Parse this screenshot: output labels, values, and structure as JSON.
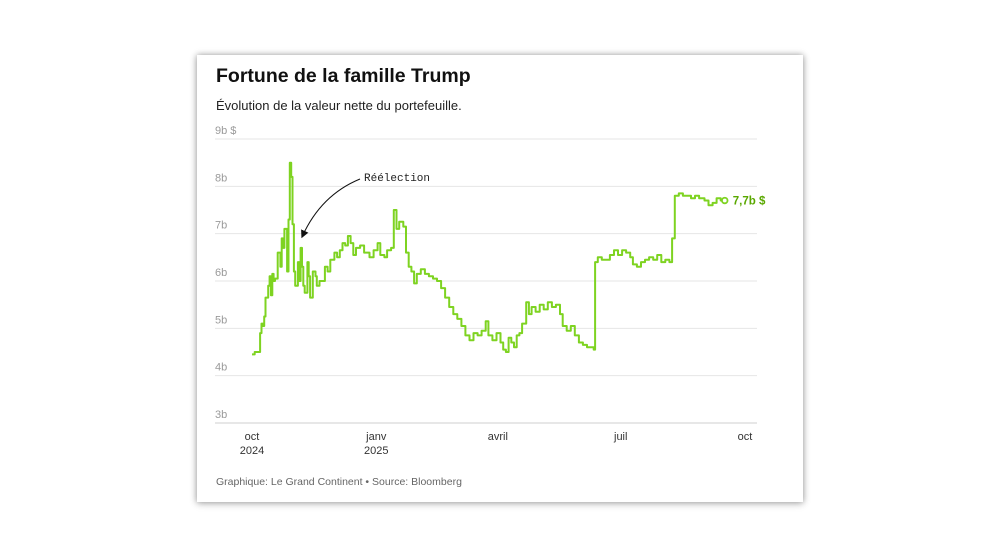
{
  "card": {
    "title": "Fortune de la famille Trump",
    "subtitle": "Évolution de la valeur nette du portefeuille.",
    "credit": "Graphique: Le Grand Continent • Source: Bloomberg"
  },
  "chart_data": {
    "type": "line",
    "title": "Fortune de la famille Trump",
    "subtitle": "Évolution de la valeur nette du portefeuille.",
    "xlabel": "",
    "ylabel": "",
    "ylim": [
      3,
      9
    ],
    "grid": true,
    "y_ticks": [
      "3b",
      "4b",
      "5b",
      "6b",
      "7b",
      "8b",
      "9b $"
    ],
    "x_ticks": [
      {
        "line1": "oct",
        "line2": "2024",
        "date": "2024-10-01"
      },
      {
        "line1": "janv",
        "line2": "2025",
        "date": "2025-01-01"
      },
      {
        "line1": "avril",
        "line2": "",
        "date": "2025-04-01"
      },
      {
        "line1": "juil",
        "line2": "",
        "date": "2025-07-01"
      },
      {
        "line1": "oct",
        "line2": "",
        "date": "2025-10-01"
      }
    ],
    "line_color": "#7ed321",
    "end_label": "7,7b $",
    "annotation": {
      "text": "Réélection",
      "date": "2024-11-05",
      "value": 6.9
    },
    "series": [
      {
        "points": [
          [
            "2024-10-01",
            4.45
          ],
          [
            "2024-10-03",
            4.5
          ],
          [
            "2024-10-05",
            4.5
          ],
          [
            "2024-10-07",
            4.9
          ],
          [
            "2024-10-08",
            5.1
          ],
          [
            "2024-10-09",
            5.05
          ],
          [
            "2024-10-10",
            5.25
          ],
          [
            "2024-10-11",
            5.65
          ],
          [
            "2024-10-13",
            5.9
          ],
          [
            "2024-10-14",
            6.1
          ],
          [
            "2024-10-15",
            5.7
          ],
          [
            "2024-10-16",
            6.15
          ],
          [
            "2024-10-17",
            6.0
          ],
          [
            "2024-10-18",
            6.05
          ],
          [
            "2024-10-20",
            6.6
          ],
          [
            "2024-10-22",
            6.3
          ],
          [
            "2024-10-23",
            6.9
          ],
          [
            "2024-10-24",
            6.7
          ],
          [
            "2024-10-25",
            7.1
          ],
          [
            "2024-10-27",
            6.2
          ],
          [
            "2024-10-28",
            7.3
          ],
          [
            "2024-10-29",
            8.5
          ],
          [
            "2024-10-30",
            8.2
          ],
          [
            "2024-10-31",
            7.2
          ],
          [
            "2024-11-01",
            6.2
          ],
          [
            "2024-11-02",
            5.9
          ],
          [
            "2024-11-04",
            6.4
          ],
          [
            "2024-11-05",
            6.0
          ],
          [
            "2024-11-06",
            6.7
          ],
          [
            "2024-11-07",
            6.3
          ],
          [
            "2024-11-08",
            5.9
          ],
          [
            "2024-11-09",
            5.75
          ],
          [
            "2024-11-11",
            6.4
          ],
          [
            "2024-11-12",
            6.1
          ],
          [
            "2024-11-13",
            5.65
          ],
          [
            "2024-11-15",
            6.2
          ],
          [
            "2024-11-17",
            6.1
          ],
          [
            "2024-11-18",
            5.9
          ],
          [
            "2024-11-20",
            6.0
          ],
          [
            "2024-11-22",
            6.0
          ],
          [
            "2024-11-24",
            6.3
          ],
          [
            "2024-11-26",
            6.2
          ],
          [
            "2024-11-28",
            6.45
          ],
          [
            "2024-12-01",
            6.6
          ],
          [
            "2024-12-03",
            6.5
          ],
          [
            "2024-12-05",
            6.65
          ],
          [
            "2024-12-07",
            6.8
          ],
          [
            "2024-12-09",
            6.75
          ],
          [
            "2024-12-11",
            6.95
          ],
          [
            "2024-12-13",
            6.8
          ],
          [
            "2024-12-15",
            6.55
          ],
          [
            "2024-12-17",
            6.7
          ],
          [
            "2024-12-20",
            6.75
          ],
          [
            "2024-12-23",
            6.6
          ],
          [
            "2024-12-27",
            6.5
          ],
          [
            "2024-12-30",
            6.65
          ],
          [
            "2025-01-02",
            6.8
          ],
          [
            "2025-01-04",
            6.55
          ],
          [
            "2025-01-07",
            6.5
          ],
          [
            "2025-01-09",
            6.65
          ],
          [
            "2025-01-12",
            6.7
          ],
          [
            "2025-01-14",
            7.5
          ],
          [
            "2025-01-16",
            7.1
          ],
          [
            "2025-01-18",
            7.25
          ],
          [
            "2025-01-21",
            7.15
          ],
          [
            "2025-01-23",
            6.6
          ],
          [
            "2025-01-25",
            6.3
          ],
          [
            "2025-01-27",
            6.2
          ],
          [
            "2025-01-29",
            5.95
          ],
          [
            "2025-01-31",
            6.15
          ],
          [
            "2025-02-03",
            6.25
          ],
          [
            "2025-02-06",
            6.15
          ],
          [
            "2025-02-09",
            6.1
          ],
          [
            "2025-02-12",
            6.05
          ],
          [
            "2025-02-15",
            6.0
          ],
          [
            "2025-02-18",
            5.85
          ],
          [
            "2025-02-21",
            5.65
          ],
          [
            "2025-02-24",
            5.45
          ],
          [
            "2025-02-27",
            5.3
          ],
          [
            "2025-03-02",
            5.2
          ],
          [
            "2025-03-05",
            5.05
          ],
          [
            "2025-03-08",
            4.85
          ],
          [
            "2025-03-11",
            4.75
          ],
          [
            "2025-03-14",
            4.9
          ],
          [
            "2025-03-17",
            4.85
          ],
          [
            "2025-03-20",
            4.95
          ],
          [
            "2025-03-23",
            5.15
          ],
          [
            "2025-03-25",
            4.85
          ],
          [
            "2025-03-28",
            4.75
          ],
          [
            "2025-03-31",
            4.9
          ],
          [
            "2025-04-03",
            4.7
          ],
          [
            "2025-04-05",
            4.55
          ],
          [
            "2025-04-07",
            4.5
          ],
          [
            "2025-04-09",
            4.8
          ],
          [
            "2025-04-11",
            4.7
          ],
          [
            "2025-04-13",
            4.6
          ],
          [
            "2025-04-15",
            4.85
          ],
          [
            "2025-04-17",
            4.9
          ],
          [
            "2025-04-19",
            5.1
          ],
          [
            "2025-04-22",
            5.55
          ],
          [
            "2025-04-24",
            5.3
          ],
          [
            "2025-04-26",
            5.45
          ],
          [
            "2025-04-29",
            5.35
          ],
          [
            "2025-05-02",
            5.5
          ],
          [
            "2025-05-05",
            5.4
          ],
          [
            "2025-05-08",
            5.55
          ],
          [
            "2025-05-11",
            5.45
          ],
          [
            "2025-05-14",
            5.5
          ],
          [
            "2025-05-17",
            5.3
          ],
          [
            "2025-05-19",
            5.05
          ],
          [
            "2025-05-22",
            4.95
          ],
          [
            "2025-05-25",
            5.05
          ],
          [
            "2025-05-28",
            4.85
          ],
          [
            "2025-05-31",
            4.7
          ],
          [
            "2025-06-03",
            4.65
          ],
          [
            "2025-06-06",
            4.6
          ],
          [
            "2025-06-09",
            4.6
          ],
          [
            "2025-06-11",
            4.55
          ],
          [
            "2025-06-12",
            6.4
          ],
          [
            "2025-06-14",
            6.5
          ],
          [
            "2025-06-17",
            6.45
          ],
          [
            "2025-06-20",
            6.45
          ],
          [
            "2025-06-23",
            6.55
          ],
          [
            "2025-06-26",
            6.65
          ],
          [
            "2025-06-29",
            6.55
          ],
          [
            "2025-07-02",
            6.65
          ],
          [
            "2025-07-05",
            6.6
          ],
          [
            "2025-07-08",
            6.5
          ],
          [
            "2025-07-10",
            6.35
          ],
          [
            "2025-07-13",
            6.3
          ],
          [
            "2025-07-16",
            6.4
          ],
          [
            "2025-07-19",
            6.45
          ],
          [
            "2025-07-22",
            6.5
          ],
          [
            "2025-07-25",
            6.45
          ],
          [
            "2025-07-28",
            6.55
          ],
          [
            "2025-07-31",
            6.4
          ],
          [
            "2025-08-03",
            6.45
          ],
          [
            "2025-08-06",
            6.4
          ],
          [
            "2025-08-08",
            6.9
          ],
          [
            "2025-08-10",
            7.8
          ],
          [
            "2025-08-13",
            7.85
          ],
          [
            "2025-08-16",
            7.8
          ],
          [
            "2025-08-19",
            7.8
          ],
          [
            "2025-08-22",
            7.75
          ],
          [
            "2025-08-25",
            7.8
          ],
          [
            "2025-08-28",
            7.75
          ],
          [
            "2025-09-01",
            7.7
          ],
          [
            "2025-09-04",
            7.6
          ],
          [
            "2025-09-07",
            7.65
          ],
          [
            "2025-09-10",
            7.75
          ],
          [
            "2025-09-13",
            7.7
          ],
          [
            "2025-09-16",
            7.7
          ]
        ]
      }
    ]
  }
}
